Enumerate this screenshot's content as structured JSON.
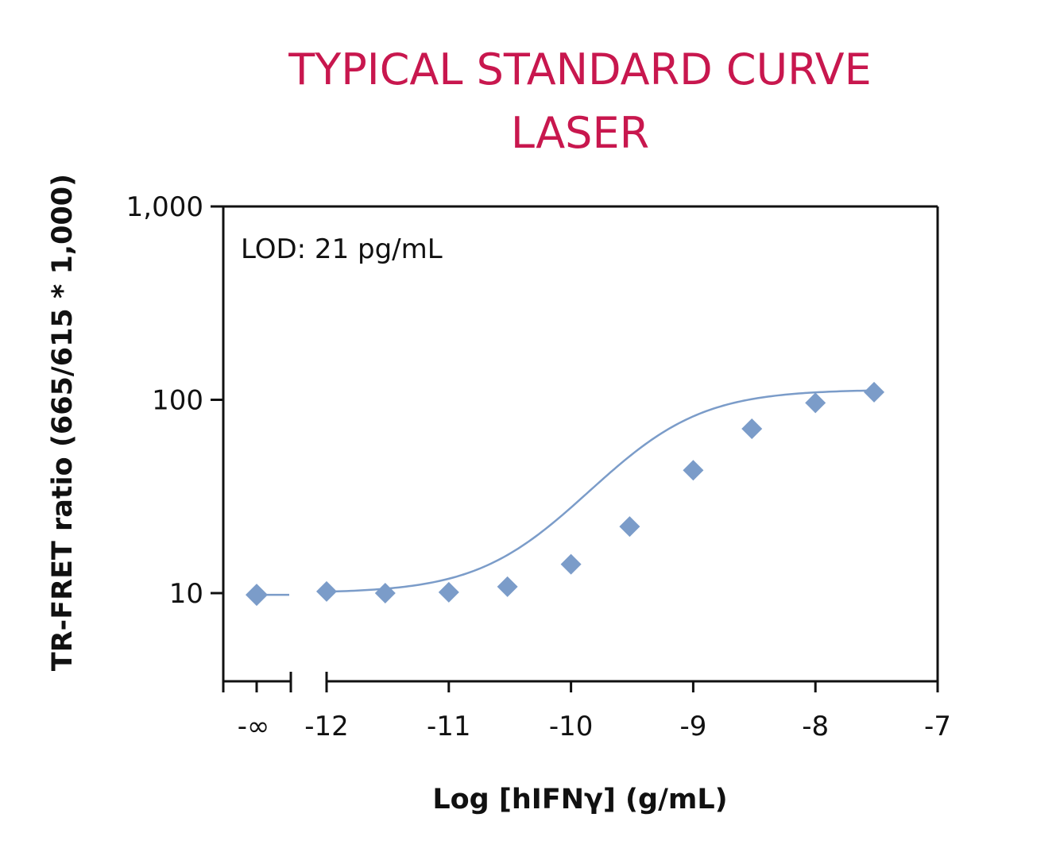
{
  "chart_data": {
    "type": "scatter",
    "title_lines": [
      "TYPICAL STANDARD CURVE",
      "LASER"
    ],
    "xlabel": "Log [hIFNγ] (g/mL)",
    "ylabel": "TR-FRET ratio (665/615 * 1,000)",
    "annotation": "LOD: 21 pg/mL",
    "y_scale": "log",
    "ylim": [
      3.5,
      1000
    ],
    "xlim": [
      -12,
      -7
    ],
    "x_ticks": [
      -12,
      -11,
      -10,
      -9,
      -8,
      -7
    ],
    "x_tick_labels": [
      "-12",
      "-11",
      "-10",
      "-9",
      "-8",
      "-7"
    ],
    "y_ticks": [
      10,
      100,
      1000
    ],
    "y_tick_labels": [
      "10",
      "100",
      "1,000"
    ],
    "zero_point": {
      "x_label": "-∞",
      "y": 9.8
    },
    "series": [
      {
        "name": "Standard curve",
        "x": [
          -12,
          -11.52,
          -11,
          -10.52,
          -10,
          -9.52,
          -9,
          -8.52,
          -8,
          -7.52
        ],
        "y": [
          10.2,
          10.0,
          10.1,
          10.8,
          14.1,
          22.1,
          43.2,
          70.8,
          96.4,
          109.5
        ]
      }
    ],
    "fit": {
      "type": "4PL",
      "bottom": 10.0,
      "top": 113,
      "log_ec50": -9.35,
      "hill_slope": 1.05
    }
  }
}
